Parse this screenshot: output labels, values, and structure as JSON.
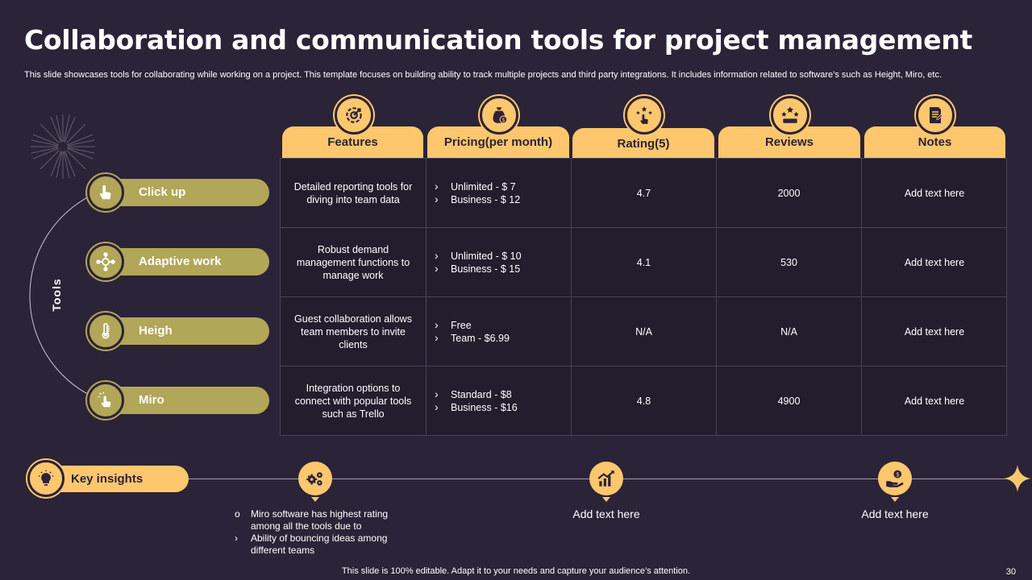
{
  "title": "Collaboration and communication tools for project management",
  "subtitle": "This slide showcases tools for collaborating while working on a project. This template focuses on building ability to track multiple projects and third party integrations. It includes information related to software’s such as Height, Miro, etc.",
  "tools_label": "Tools",
  "tools": [
    {
      "name": "Click up",
      "icon": "hand-pointer-icon"
    },
    {
      "name": "Adaptive work",
      "icon": "network-icon"
    },
    {
      "name": "Heigh",
      "icon": "thermometer-icon"
    },
    {
      "name": "Miro",
      "icon": "touch-gesture-icon"
    }
  ],
  "headers": [
    {
      "label": "Features",
      "icon": "target-gear-icon"
    },
    {
      "label": "Pricing(per month)",
      "icon": "money-bag-icon"
    },
    {
      "label": "Rating(5)",
      "icon": "stars-hand-icon"
    },
    {
      "label": "Reviews",
      "icon": "review-stars-icon"
    },
    {
      "label": "Notes",
      "icon": "notepad-icon"
    }
  ],
  "rows": [
    {
      "features": "Detailed reporting tools for diving into team data",
      "pricing": [
        "Unlimited - $ 7",
        "Business - $ 12"
      ],
      "rating": "4.7",
      "reviews": "2000",
      "notes": "Add text here"
    },
    {
      "features": "Robust demand management functions to manage work",
      "pricing": [
        "Unlimited - $ 10",
        "Business - $ 15"
      ],
      "rating": "4.1",
      "reviews": "530",
      "notes": "Add text here"
    },
    {
      "features": "Guest collaboration allows team members to invite clients",
      "pricing": [
        "Free",
        "Team  - $6.99"
      ],
      "rating": "N/A",
      "reviews": "N/A",
      "notes": "Add text here"
    },
    {
      "features": "Integration options to connect with popular tools such as Trello",
      "pricing": [
        "Standard - $8",
        "Business - $16"
      ],
      "rating": "4.8",
      "reviews": "4900",
      "notes": "Add text here"
    }
  ],
  "insights": {
    "label": "Key insights",
    "bullet_circle": "o",
    "bullet_arrow": "›",
    "item1": "Miro software has highest rating among all the tools due to",
    "item2": "Ability of bouncing ideas among different teams",
    "text2": "Add text here",
    "text3": "Add text here"
  },
  "footer": "This slide is 100% editable. Adapt it to your needs and capture your audience’s attention.",
  "page_number": "30",
  "colors": {
    "background": "#2b2337",
    "accent": "#fec76e",
    "olive": "#b2a658"
  }
}
